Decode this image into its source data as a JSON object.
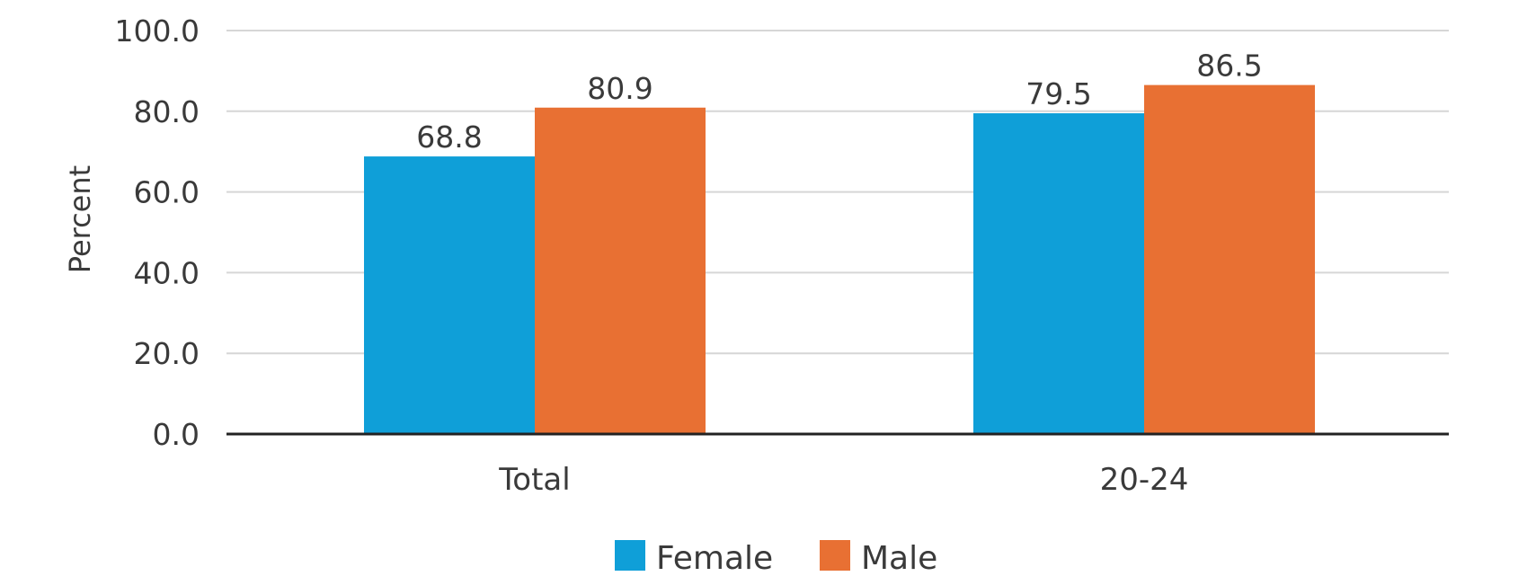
{
  "chart_data": {
    "type": "bar",
    "title": "",
    "xlabel": "",
    "ylabel": "Percent",
    "categories": [
      "Total",
      "20-24"
    ],
    "series": [
      {
        "name": "Female",
        "color": "#0F9FD8",
        "values": [
          68.8,
          79.5
        ],
        "labels": [
          "68.8",
          "79.5"
        ]
      },
      {
        "name": "Male",
        "color": "#E87033",
        "values": [
          80.9,
          86.5
        ],
        "labels": [
          "80.9",
          "86.5"
        ]
      }
    ],
    "ylim": [
      0,
      100
    ],
    "yticks": [
      0,
      20,
      40,
      60,
      80,
      100
    ],
    "ytick_labels": [
      "0.0",
      "20.0",
      "40.0",
      "60.0",
      "80.0",
      "100.0"
    ],
    "grid": true,
    "legend_position": "bottom"
  }
}
